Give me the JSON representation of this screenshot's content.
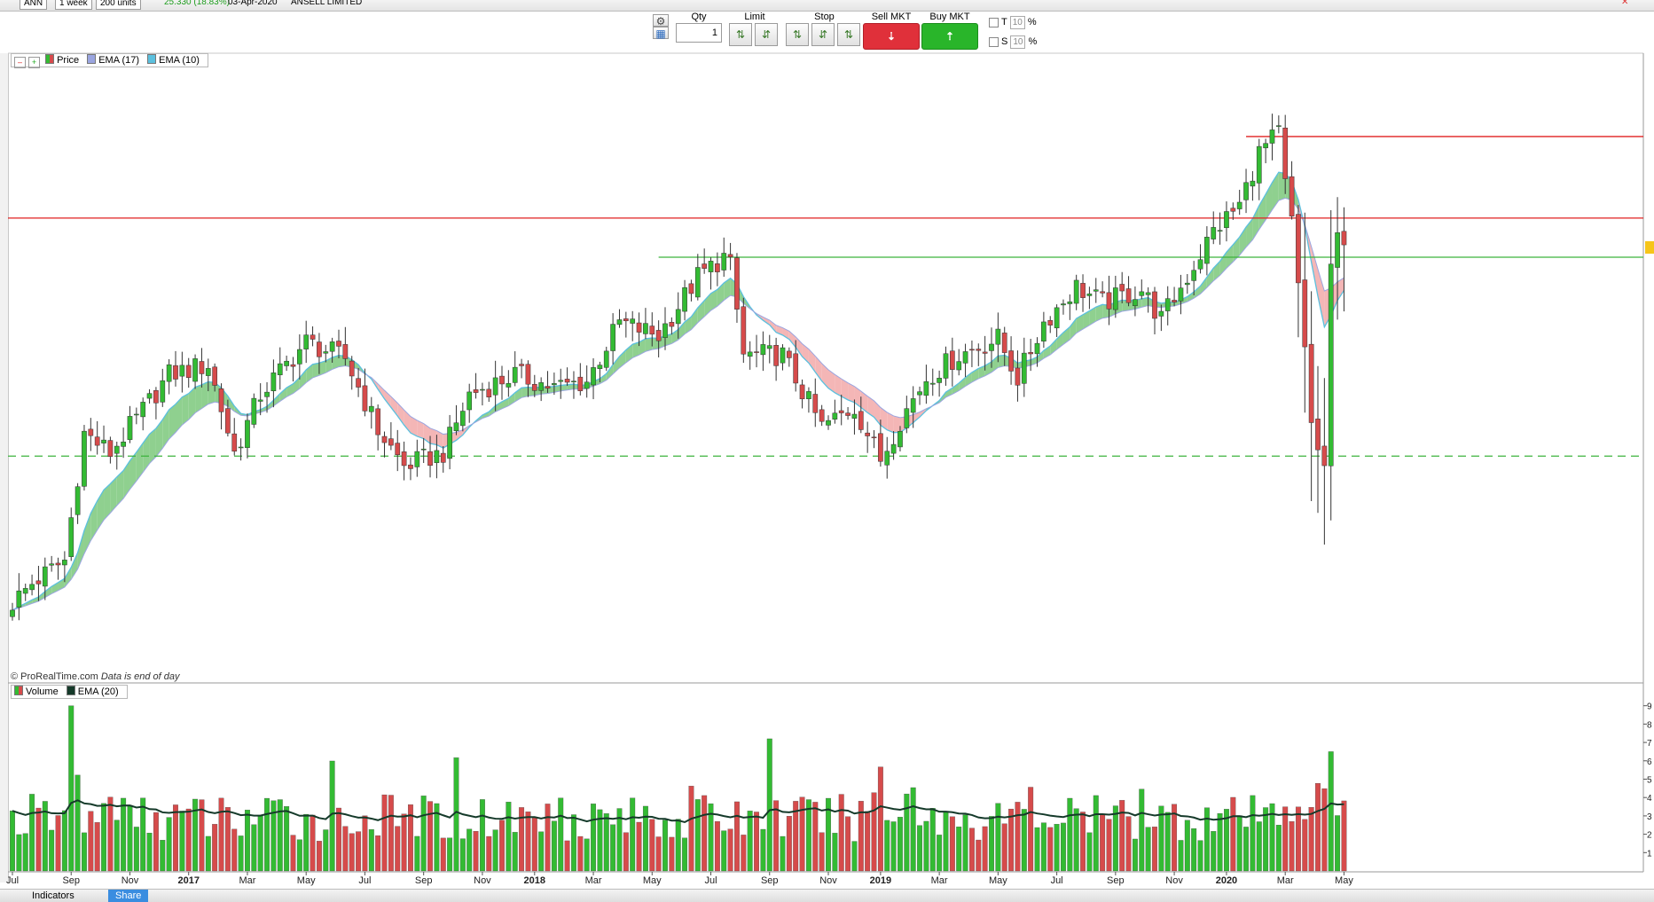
{
  "topbar": {
    "ticker": "ANN",
    "interval": "1 week",
    "units": "200 units",
    "last_change": "25.330 (18.83%)",
    "date": "03-Apr-2020",
    "company": "ANSELL LIMITED"
  },
  "tradebar": {
    "qty_label": "Qty",
    "qty_value": "1",
    "limit_label": "Limit",
    "stop_label": "Stop",
    "sell_label": "Sell MKT",
    "buy_label": "Buy MKT",
    "t_label": "T",
    "s_label": "S",
    "t_value": "10",
    "s_value": "10",
    "percent": "%"
  },
  "price_legend": {
    "price": "Price",
    "ema17": "EMA (17)",
    "ema10": "EMA (10)"
  },
  "volume_legend": {
    "volume": "Volume",
    "ema20": "EMA (20)"
  },
  "source_note": {
    "brand": "© ProRealTime.com",
    "note": "Data is end of day"
  },
  "bottombar": {
    "indicators": "Indicators",
    "share": "Share"
  },
  "colors": {
    "up": "#33bb33",
    "down": "#d64b4b",
    "ema_up_fill": "#8fd08f",
    "ema_down_fill": "#f4b6b6",
    "ema_line": "#5bc0de",
    "resistance": "#e02020",
    "support": "#3cb33c",
    "vol_ema": "#153a2a"
  },
  "chart_data": [
    {
      "type": "candlestick",
      "title": "",
      "x_tick_labels": [
        "Jul",
        "Sep",
        "Nov",
        "2017",
        "Mar",
        "May",
        "Jul",
        "Sep",
        "Nov",
        "2018",
        "Mar",
        "May",
        "Jul",
        "Sep",
        "Nov",
        "2019",
        "Mar",
        "May",
        "Jul",
        "Sep",
        "Nov",
        "2020",
        "Mar",
        "May"
      ],
      "x_tick_weeks": [
        0,
        9,
        18,
        27,
        36,
        45,
        54,
        63,
        72,
        80,
        89,
        98,
        107,
        116,
        125,
        133,
        142,
        151,
        160,
        169,
        178,
        186,
        195,
        204
      ],
      "start_week": "2016-06-27",
      "grid": false,
      "series": [
        {
          "name": "Price",
          "anchors": [
            [
              0,
              18.4
            ],
            [
              3,
              19.0
            ],
            [
              8,
              19.7
            ],
            [
              11,
              23.6
            ],
            [
              15,
              23.0
            ],
            [
              20,
              24.3
            ],
            [
              24,
              25.4
            ],
            [
              30,
              25.7
            ],
            [
              34,
              23.0
            ],
            [
              38,
              24.8
            ],
            [
              45,
              26.4
            ],
            [
              51,
              25.9
            ],
            [
              56,
              23.7
            ],
            [
              60,
              22.6
            ],
            [
              66,
              23.0
            ],
            [
              70,
              24.8
            ],
            [
              77,
              25.4
            ],
            [
              83,
              25.0
            ],
            [
              88,
              25.2
            ],
            [
              93,
              27.0
            ],
            [
              99,
              26.6
            ],
            [
              105,
              28.4
            ],
            [
              109,
              29.0
            ],
            [
              110,
              28.7
            ],
            [
              112,
              26.0
            ],
            [
              118,
              26.0
            ],
            [
              124,
              23.8
            ],
            [
              129,
              24.4
            ],
            [
              131,
              23.6
            ],
            [
              133,
              22.8
            ],
            [
              136,
              24.0
            ],
            [
              140,
              25.3
            ],
            [
              145,
              26.0
            ],
            [
              151,
              26.5
            ],
            [
              154,
              25.3
            ],
            [
              158,
              27.0
            ],
            [
              163,
              28.1
            ],
            [
              167,
              27.6
            ],
            [
              173,
              28.0
            ],
            [
              176,
              27.1
            ],
            [
              180,
              28.4
            ],
            [
              184,
              29.8
            ],
            [
              188,
              30.6
            ],
            [
              191,
              32.2
            ],
            [
              194,
              32.8
            ],
            [
              195,
              31.2
            ],
            [
              196,
              30.1
            ],
            [
              197,
              28.0
            ],
            [
              198,
              26.2
            ],
            [
              199,
              24.0
            ],
            [
              200,
              23.0
            ],
            [
              201,
              22.6
            ],
            [
              202,
              28.5
            ],
            [
              203,
              29.6
            ]
          ]
        },
        {
          "name": "EMA (17)"
        },
        {
          "name": "EMA (10)"
        }
      ],
      "levels": [
        {
          "kind": "resistance",
          "value": 32.7
        },
        {
          "kind": "resistance",
          "value": 30.2
        },
        {
          "kind": "support",
          "value": 29.0
        },
        {
          "kind": "support_dashed",
          "value": 22.9
        }
      ],
      "ylim": [
        16.0,
        35.2
      ]
    },
    {
      "type": "bar",
      "title": "",
      "series": [
        {
          "name": "Volume"
        },
        {
          "name": "EMA (20)"
        }
      ],
      "ylim": [
        0,
        10
      ],
      "y_ticks": [
        1,
        2,
        3,
        4,
        5,
        6,
        7,
        8,
        9
      ]
    }
  ]
}
